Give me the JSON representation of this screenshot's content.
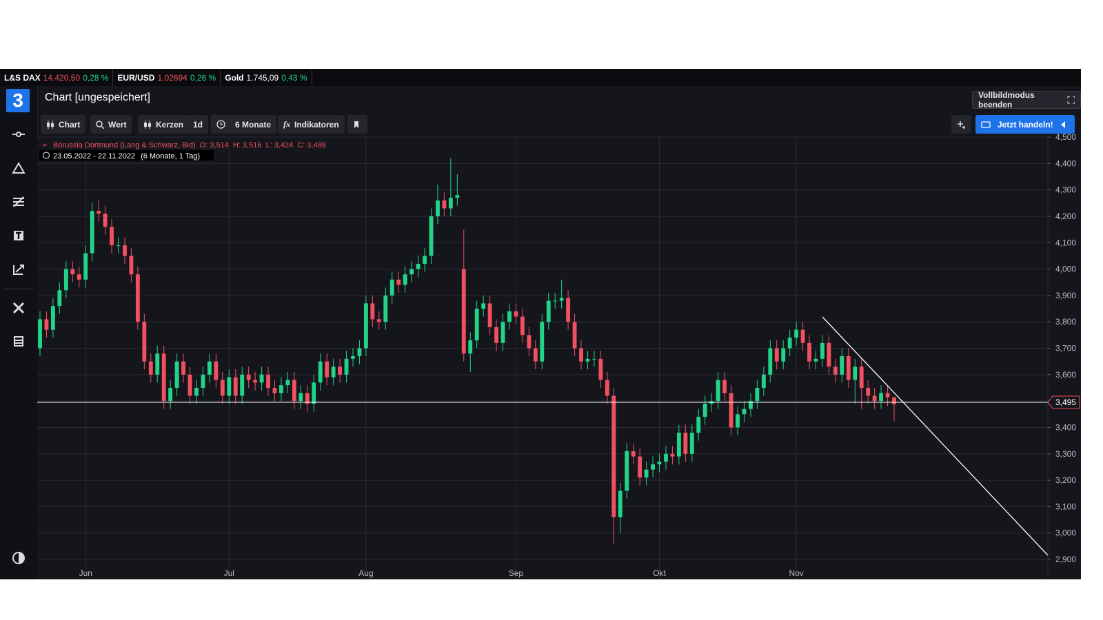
{
  "logo": "3",
  "ticker": [
    {
      "name": "L&S DAX",
      "price": "14.420,50",
      "change": "0,28 %"
    },
    {
      "name": "EUR/USD",
      "price": "1,02694",
      "change": "0,26 %"
    },
    {
      "name": "Gold",
      "price": "1.745,09",
      "change": "0,43 %"
    }
  ],
  "header": {
    "title": "Chart [ungespeichert]",
    "fullscreen_button": "Vollbildmodus beenden"
  },
  "toolbar": {
    "chart": "Chart",
    "search": "Wert",
    "style": "Kerzen",
    "interval": "1d",
    "range": "6 Monate",
    "indicators": "Indikatoren",
    "trade": "Jetzt handeln!"
  },
  "chart_data": {
    "type": "candlestick",
    "legend": {
      "name": "Borussia Dortmund (Lang & Schwarz, Bid)",
      "ohlc_labels": [
        "O: 3,514",
        "H: 3,516",
        "L: 3,424",
        "C: 3,488"
      ],
      "period": "23.05.2022 - 22.11.2022",
      "period_detail": "(6 Monate, 1 Tag)"
    },
    "up_color": "#22d38a",
    "down_color": "#f0505f",
    "grid": true,
    "ylim": [
      2.827,
      4.5
    ],
    "yticks": [
      {
        "value": 2.9,
        "label": "2,900"
      },
      {
        "value": 3.0,
        "label": "3,000"
      },
      {
        "value": 3.1,
        "label": "3,100"
      },
      {
        "value": 3.2,
        "label": "3,200"
      },
      {
        "value": 3.3,
        "label": "3,300"
      },
      {
        "value": 3.4,
        "label": "3,400"
      },
      {
        "value": 3.5,
        "label": "3,500"
      },
      {
        "value": 3.6,
        "label": "3,600"
      },
      {
        "value": 3.7,
        "label": "3,700"
      },
      {
        "value": 3.8,
        "label": "3,800"
      },
      {
        "value": 3.9,
        "label": "3,900"
      },
      {
        "value": 4.0,
        "label": "4,000"
      },
      {
        "value": 4.1,
        "label": "4,100"
      },
      {
        "value": 4.2,
        "label": "4,200"
      },
      {
        "value": 4.3,
        "label": "4,300"
      },
      {
        "value": 4.4,
        "label": "4,400"
      },
      {
        "value": 4.5,
        "label": "4,500"
      }
    ],
    "last_price": {
      "value": 3.495,
      "label": "3,495"
    },
    "categories": [
      null,
      null,
      null,
      null,
      null,
      null,
      null,
      "Jun",
      null,
      null,
      null,
      null,
      null,
      null,
      null,
      null,
      null,
      null,
      null,
      null,
      null,
      null,
      null,
      null,
      null,
      null,
      null,
      null,
      null,
      "Jul",
      null,
      null,
      null,
      null,
      null,
      null,
      null,
      null,
      null,
      null,
      null,
      null,
      null,
      null,
      null,
      null,
      null,
      null,
      null,
      null,
      "Aug",
      null,
      null,
      null,
      null,
      null,
      null,
      null,
      null,
      null,
      null,
      null,
      null,
      null,
      null,
      null,
      null,
      null,
      null,
      null,
      null,
      null,
      null,
      "Sep",
      null,
      null,
      null,
      null,
      null,
      null,
      null,
      null,
      null,
      null,
      null,
      null,
      null,
      null,
      null,
      null,
      null,
      null,
      null,
      null,
      null,
      "Okt",
      null,
      null,
      null,
      null,
      null,
      null,
      null,
      null,
      null,
      null,
      null,
      null,
      null,
      null,
      null,
      null,
      null,
      null,
      null,
      null,
      "Nov",
      null,
      null,
      null,
      null,
      null,
      null,
      null,
      null,
      null,
      null,
      null,
      null,
      null,
      null,
      null
    ],
    "open": [
      3.7,
      3.81,
      3.77,
      3.86,
      3.92,
      4.0,
      3.98,
      3.96,
      4.06,
      4.22,
      4.21,
      4.16,
      4.09,
      4.09,
      4.05,
      3.98,
      3.8,
      3.65,
      3.6,
      3.68,
      3.5,
      3.55,
      3.65,
      3.6,
      3.52,
      3.55,
      3.6,
      3.65,
      3.58,
      3.52,
      3.59,
      3.52,
      3.6,
      3.58,
      3.57,
      3.6,
      3.55,
      3.53,
      3.56,
      3.58,
      3.5,
      3.53,
      3.49,
      3.57,
      3.65,
      3.59,
      3.63,
      3.6,
      3.66,
      3.67,
      3.7,
      3.87,
      3.81,
      3.8,
      3.9,
      3.96,
      3.94,
      3.98,
      4.0,
      4.02,
      4.05,
      4.2,
      4.26,
      4.23,
      4.27,
      4.0,
      3.68,
      3.73,
      3.85,
      3.87,
      3.78,
      3.72,
      3.8,
      3.84,
      3.82,
      3.75,
      3.7,
      3.65,
      3.8,
      3.88,
      3.88,
      3.89,
      3.8,
      3.7,
      3.65,
      3.66,
      3.66,
      3.58,
      3.52,
      3.06,
      3.16,
      3.31,
      3.29,
      3.21,
      3.24,
      3.26,
      3.27,
      3.3,
      3.29,
      3.38,
      3.3,
      3.38,
      3.44,
      3.49,
      3.5,
      3.58,
      3.53,
      3.4,
      3.45,
      3.47,
      3.5,
      3.55,
      3.6,
      3.7,
      3.65,
      3.7,
      3.74,
      3.77,
      3.72,
      3.65,
      3.66,
      3.72,
      3.63,
      3.6,
      3.67,
      3.58,
      3.63,
      3.55,
      3.52,
      3.5,
      3.53,
      3.514
    ],
    "high": [
      3.84,
      3.84,
      3.89,
      3.95,
      4.03,
      4.03,
      4.01,
      4.09,
      4.25,
      4.26,
      4.24,
      4.19,
      4.12,
      4.12,
      4.08,
      4.01,
      3.83,
      3.68,
      3.71,
      3.71,
      3.58,
      3.68,
      3.68,
      3.63,
      3.58,
      3.63,
      3.68,
      3.68,
      3.61,
      3.62,
      3.62,
      3.63,
      3.63,
      3.61,
      3.63,
      3.63,
      3.58,
      3.59,
      3.61,
      3.61,
      3.56,
      3.56,
      3.6,
      3.68,
      3.68,
      3.66,
      3.66,
      3.69,
      3.7,
      3.73,
      3.9,
      3.9,
      3.84,
      3.93,
      3.99,
      3.99,
      4.01,
      4.03,
      4.05,
      4.08,
      4.23,
      4.32,
      4.29,
      4.42,
      4.36,
      4.15,
      3.76,
      3.88,
      3.9,
      3.9,
      3.81,
      3.83,
      3.87,
      3.87,
      3.85,
      3.78,
      3.73,
      3.83,
      3.91,
      3.91,
      3.96,
      3.92,
      3.83,
      3.73,
      3.69,
      3.69,
      3.69,
      3.61,
      3.55,
      3.19,
      3.34,
      3.34,
      3.32,
      3.27,
      3.29,
      3.3,
      3.33,
      3.33,
      3.41,
      3.41,
      3.41,
      3.47,
      3.52,
      3.53,
      3.61,
      3.61,
      3.56,
      3.48,
      3.5,
      3.53,
      3.58,
      3.63,
      3.73,
      3.73,
      3.73,
      3.77,
      3.8,
      3.8,
      3.75,
      3.69,
      3.75,
      3.75,
      3.66,
      3.7,
      3.7,
      3.66,
      3.66,
      3.58,
      3.55,
      3.56,
      3.56,
      3.516
    ],
    "low": [
      3.67,
      3.74,
      3.74,
      3.83,
      3.89,
      3.95,
      3.93,
      3.93,
      4.03,
      4.18,
      4.13,
      4.06,
      4.06,
      4.02,
      3.95,
      3.77,
      3.62,
      3.57,
      3.57,
      3.47,
      3.47,
      3.52,
      3.57,
      3.49,
      3.49,
      3.52,
      3.57,
      3.55,
      3.49,
      3.49,
      3.49,
      3.49,
      3.55,
      3.54,
      3.54,
      3.52,
      3.5,
      3.5,
      3.53,
      3.47,
      3.47,
      3.46,
      3.46,
      3.54,
      3.56,
      3.56,
      3.57,
      3.57,
      3.63,
      3.64,
      3.67,
      3.78,
      3.77,
      3.77,
      3.87,
      3.91,
      3.91,
      3.95,
      3.97,
      3.99,
      4.02,
      4.17,
      4.2,
      4.2,
      4.24,
      3.65,
      3.61,
      3.7,
      3.82,
      3.75,
      3.69,
      3.69,
      3.77,
      3.79,
      3.72,
      3.67,
      3.62,
      3.62,
      3.77,
      3.85,
      3.85,
      3.77,
      3.67,
      3.62,
      3.62,
      3.63,
      3.55,
      3.49,
      2.96,
      3.0,
      3.13,
      3.26,
      3.18,
      3.18,
      3.21,
      3.23,
      3.24,
      3.26,
      3.26,
      3.27,
      3.27,
      3.35,
      3.41,
      3.46,
      3.47,
      3.5,
      3.37,
      3.37,
      3.42,
      3.44,
      3.47,
      3.52,
      3.57,
      3.62,
      3.62,
      3.67,
      3.71,
      3.69,
      3.62,
      3.62,
      3.63,
      3.6,
      3.57,
      3.57,
      3.55,
      3.49,
      3.47,
      3.49,
      3.47,
      3.47,
      3.48,
      3.424
    ],
    "close": [
      3.81,
      3.77,
      3.86,
      3.92,
      4.0,
      3.98,
      3.96,
      4.06,
      4.22,
      4.21,
      4.16,
      4.09,
      4.09,
      4.05,
      3.98,
      3.8,
      3.65,
      3.6,
      3.68,
      3.5,
      3.55,
      3.65,
      3.6,
      3.52,
      3.55,
      3.6,
      3.65,
      3.58,
      3.52,
      3.59,
      3.52,
      3.6,
      3.58,
      3.57,
      3.6,
      3.55,
      3.53,
      3.56,
      3.58,
      3.5,
      3.53,
      3.49,
      3.57,
      3.65,
      3.59,
      3.63,
      3.6,
      3.66,
      3.67,
      3.7,
      3.87,
      3.81,
      3.8,
      3.9,
      3.96,
      3.94,
      3.98,
      4.0,
      4.02,
      4.05,
      4.2,
      4.26,
      4.23,
      4.27,
      4.28,
      3.68,
      3.73,
      3.85,
      3.87,
      3.78,
      3.72,
      3.8,
      3.84,
      3.82,
      3.75,
      3.7,
      3.65,
      3.8,
      3.88,
      3.88,
      3.89,
      3.8,
      3.7,
      3.65,
      3.66,
      3.66,
      3.58,
      3.52,
      3.06,
      3.16,
      3.31,
      3.29,
      3.21,
      3.24,
      3.26,
      3.27,
      3.3,
      3.29,
      3.38,
      3.3,
      3.38,
      3.44,
      3.49,
      3.5,
      3.58,
      3.53,
      3.4,
      3.45,
      3.47,
      3.5,
      3.55,
      3.6,
      3.7,
      3.65,
      3.7,
      3.74,
      3.77,
      3.72,
      3.65,
      3.66,
      3.72,
      3.63,
      3.6,
      3.67,
      3.58,
      3.63,
      3.55,
      3.52,
      3.5,
      3.53,
      3.514,
      3.488
    ]
  }
}
